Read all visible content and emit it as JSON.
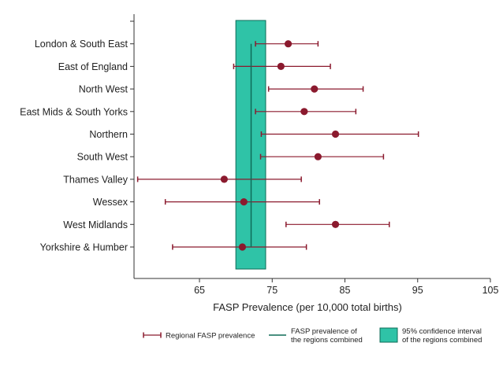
{
  "chart_data": {
    "type": "forest",
    "xlabel": "FASP Prevalence (per 10,000 total births)",
    "xlim": [
      56,
      105
    ],
    "xticks": [
      65,
      75,
      85,
      95,
      105
    ],
    "categories": [
      "London & South East",
      "East of England",
      "North West",
      "East Mids & South Yorks",
      "Northern",
      "South West",
      "Thames Valley",
      "Wessex",
      "West Midlands",
      "Yorkshire & Humber"
    ],
    "estimates": [
      77.2,
      76.2,
      80.8,
      79.4,
      83.7,
      81.3,
      68.4,
      71.1,
      83.7,
      70.9
    ],
    "lower": [
      72.7,
      69.7,
      74.5,
      72.7,
      73.5,
      73.4,
      56.5,
      60.3,
      76.9,
      61.3
    ],
    "upper": [
      81.3,
      83.0,
      87.5,
      86.5,
      95.1,
      90.3,
      79.0,
      81.5,
      91.1,
      79.7
    ],
    "combined": {
      "estimate": 72.1,
      "lower": 70.0,
      "upper": 74.1
    },
    "colors": {
      "regional": "#8b1a2e",
      "combined": "#0e6b57",
      "ci_band": "#2fc3a7"
    },
    "legend": {
      "position": "bottom",
      "items": [
        {
          "line1": "Regional FASP prevalence",
          "line2": ""
        },
        {
          "line1": "FASP prevalence of",
          "line2": "the regions combined"
        },
        {
          "line1": "95% confidence interval",
          "line2": "of the regions combined"
        }
      ]
    }
  }
}
